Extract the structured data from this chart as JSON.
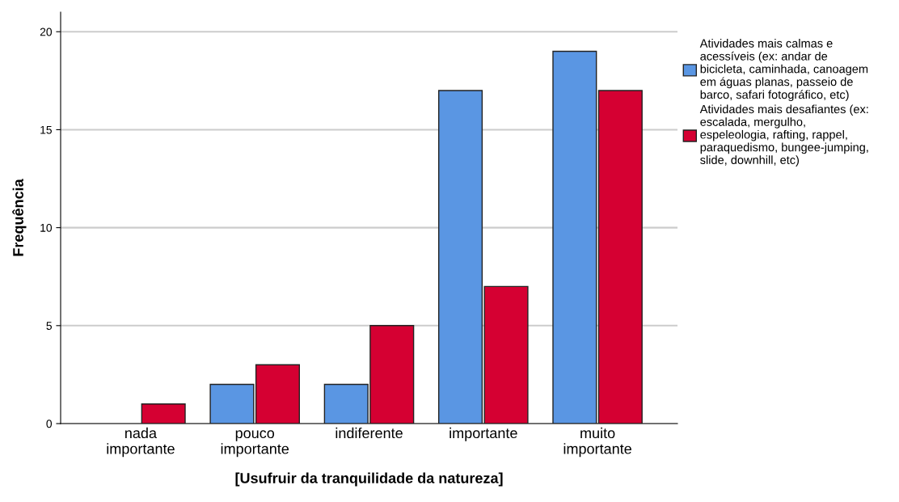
{
  "chart_data": {
    "type": "bar",
    "xlabel": "[Usufruir da tranquilidade da natureza]",
    "ylabel": "Frequência",
    "categories": [
      "nada importante",
      "pouco importante",
      "indiferente",
      "importante",
      "muito importante"
    ],
    "series": [
      {
        "name": "Atividades mais calmas e acessíveis (ex: andar de bicicleta, caminhada, canoagem em águas planas, passeio de barco, safari fotográfico, etc)",
        "color": "#5a96e3",
        "values": [
          0,
          2,
          2,
          17,
          19
        ]
      },
      {
        "name": "Atividades mais desafiantes (ex: escalada, mergulho, espeleologia, rafting, rappel, paraquedismo, bungee-jumping, slide, downhill, etc)",
        "color": "#d50032",
        "values": [
          1,
          3,
          5,
          7,
          17
        ]
      }
    ],
    "ylim": [
      0,
      21
    ],
    "yticks": [
      0,
      5,
      10,
      15,
      20
    ],
    "grid": "y",
    "legend": "right"
  }
}
